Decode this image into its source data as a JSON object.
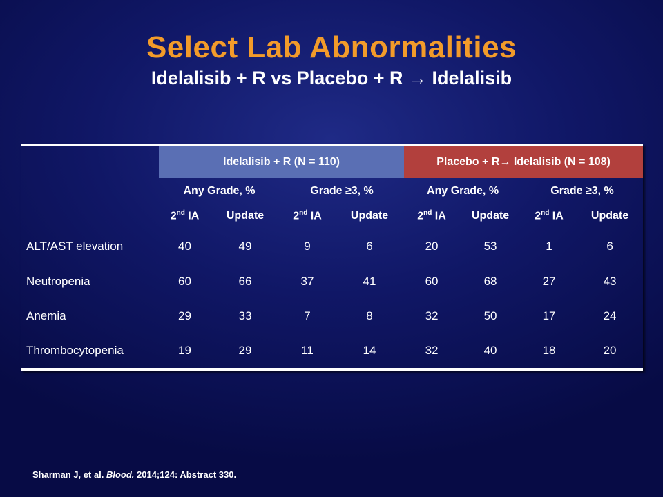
{
  "slide": {
    "title": "Select Lab Abnormalities",
    "subtitle": "Idelalisib + R vs Placebo + R → Idelalisib"
  },
  "colors": {
    "title": "#f29b2a",
    "group1_header_bg": "#5a6fb4",
    "group2_header_bg": "#b2403d",
    "background": "#101766"
  },
  "table": {
    "groups": [
      "Idelalisib  + R (N = 110)",
      "Placebo + R→ Idelalisib  (N = 108)"
    ],
    "subheaders": [
      "Any Grade, %",
      "Grade ≥3, %",
      "Any Grade, %",
      "Grade ≥3, %"
    ],
    "ia_prefix": "2",
    "ia_sup": "nd",
    "ia_suffix": " IA",
    "update_label": "Update",
    "rows": [
      {
        "label": "ALT/AST  elevation",
        "values": [
          "40",
          "49",
          "9",
          "6",
          "20",
          "53",
          "1",
          "6"
        ]
      },
      {
        "label": "Neutropenia",
        "values": [
          "60",
          "66",
          "37",
          "41",
          "60",
          "68",
          "27",
          "43"
        ]
      },
      {
        "label": "Anemia",
        "values": [
          "29",
          "33",
          "7",
          "8",
          "32",
          "50",
          "17",
          "24"
        ]
      },
      {
        "label": "Thrombocytopenia",
        "values": [
          "19",
          "29",
          "11",
          "14",
          "32",
          "40",
          "18",
          "20"
        ]
      }
    ]
  },
  "citation": {
    "authors": "Sharman J, et al.",
    "journal": "Blood.",
    "details": "2014;124: Abstract 330."
  }
}
